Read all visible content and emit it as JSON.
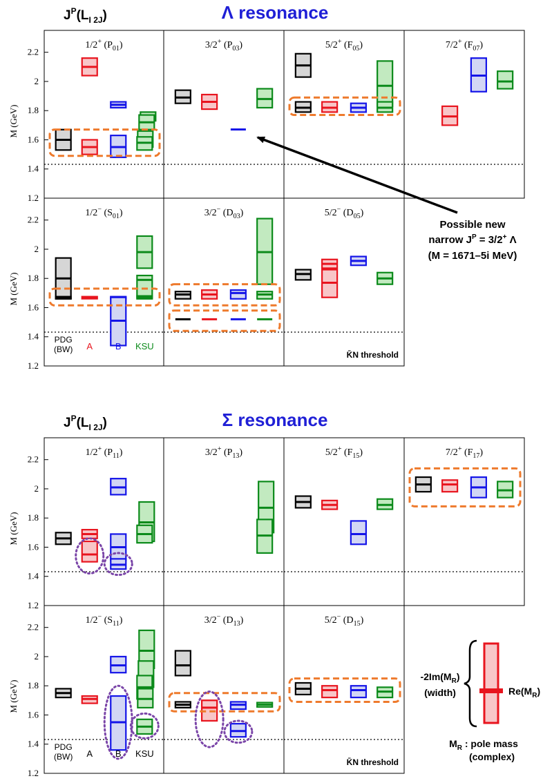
{
  "colors": {
    "pdg": "#000000",
    "a": "#e8141e",
    "b": "#1414e8",
    "ksu": "#0b8a1a",
    "pdg_fill": "#d6d6d6",
    "a_fill": "#f8c6c8",
    "b_fill": "#d2d6f4",
    "ksu_fill": "#c2eac0",
    "title": "#1f1fd6",
    "orange": "#ee7a2c",
    "purple": "#7a45a8"
  },
  "y_axis": {
    "label": "M (GeV)",
    "ticks": [
      "1.2",
      "1.4",
      "1.6",
      "1.8",
      "2",
      "2.2"
    ],
    "ylim": [
      1.2,
      2.35
    ]
  },
  "threshold": {
    "value": 1.432,
    "label": "K̄N threshold"
  },
  "methods": {
    "pdg_line1": "PDG",
    "pdg_line2": "(BW)",
    "a": "A",
    "b": "B",
    "ksu": "KSU"
  },
  "chart_data": [
    {
      "type": "box",
      "heading": "J",
      "heading_sup": "P",
      "heading_rest": "(L",
      "heading_sub": "I 2J",
      "heading_end": ")",
      "title": "Λ resonance",
      "panels": [
        {
          "label": "1/2",
          "sign": "+",
          "wave": "P",
          "wave_sub": "01",
          "boxes": [
            {
              "m": "pdg",
              "re": 1.6,
              "lo": 1.53,
              "hi": 1.67,
              "off": 0
            },
            {
              "m": "a",
              "re": 2.1,
              "lo": 2.04,
              "hi": 2.16,
              "off": 0
            },
            {
              "m": "a",
              "re": 1.55,
              "lo": 1.5,
              "hi": 1.6,
              "off": 0
            },
            {
              "m": "b",
              "re": 1.84,
              "lo": 1.82,
              "hi": 1.86,
              "off": 0
            },
            {
              "m": "b",
              "re": 1.55,
              "lo": 1.48,
              "hi": 1.63,
              "off": 0
            },
            {
              "m": "ksu",
              "re": 1.76,
              "lo": 1.73,
              "hi": 1.79,
              "off": 5
            },
            {
              "m": "ksu",
              "re": 1.72,
              "lo": 1.67,
              "hi": 1.77,
              "off": 3
            },
            {
              "m": "ksu",
              "re": 1.6,
              "lo": 1.55,
              "hi": 1.66,
              "off": 1
            },
            {
              "m": "ksu",
              "re": 1.58,
              "lo": 1.53,
              "hi": 1.62,
              "off": 0
            }
          ]
        },
        {
          "label": "3/2",
          "sign": "+",
          "wave": "P",
          "wave_sub": "03",
          "boxes": [
            {
              "m": "pdg",
              "re": 1.89,
              "lo": 1.85,
              "hi": 1.94,
              "off": 0
            },
            {
              "m": "a",
              "re": 1.86,
              "lo": 1.81,
              "hi": 1.91,
              "off": 0
            },
            {
              "m": "b",
              "re": 1.671,
              "lo": 1.671,
              "hi": 1.671,
              "off": 0
            },
            {
              "m": "ksu",
              "re": 1.88,
              "lo": 1.82,
              "hi": 1.95,
              "off": 0
            }
          ]
        },
        {
          "label": "5/2",
          "sign": "+",
          "wave": "F",
          "wave_sub": "05",
          "boxes": [
            {
              "m": "pdg",
              "re": 2.11,
              "lo": 2.03,
              "hi": 2.19,
              "off": 0
            },
            {
              "m": "pdg",
              "re": 1.82,
              "lo": 1.79,
              "hi": 1.86,
              "off": 0
            },
            {
              "m": "a",
              "re": 1.82,
              "lo": 1.79,
              "hi": 1.86,
              "off": 0
            },
            {
              "m": "b",
              "re": 1.82,
              "lo": 1.79,
              "hi": 1.85,
              "off": 0
            },
            {
              "m": "ksu",
              "re": 1.97,
              "lo": 1.83,
              "hi": 2.14,
              "off": 0
            },
            {
              "m": "ksu",
              "re": 1.82,
              "lo": 1.79,
              "hi": 1.86,
              "off": 0
            }
          ]
        },
        {
          "label": "7/2",
          "sign": "+",
          "wave": "F",
          "wave_sub": "07",
          "boxes": [
            {
              "m": "a",
              "re": 1.76,
              "lo": 1.7,
              "hi": 1.83,
              "off": 0
            },
            {
              "m": "b",
              "re": 2.04,
              "lo": 1.93,
              "hi": 2.16,
              "off": 0
            },
            {
              "m": "ksu",
              "re": 2.0,
              "lo": 1.95,
              "hi": 2.07,
              "off": 0
            }
          ]
        },
        {
          "label": "1/2",
          "sign": "−",
          "wave": "S",
          "wave_sub": "01",
          "boxes": [
            {
              "m": "pdg",
              "re": 1.8,
              "lo": 1.66,
              "hi": 1.94,
              "off": 0
            },
            {
              "m": "pdg",
              "re": 1.67,
              "lo": 1.665,
              "hi": 1.675,
              "off": 0
            },
            {
              "m": "a",
              "re": 1.67,
              "lo": 1.665,
              "hi": 1.675,
              "off": 0
            },
            {
              "m": "b",
              "re": 1.67,
              "lo": 1.665,
              "hi": 1.675,
              "off": 0
            },
            {
              "m": "b",
              "re": 1.51,
              "lo": 1.34,
              "hi": 1.67,
              "off": 0
            },
            {
              "m": "ksu",
              "re": 1.98,
              "lo": 1.87,
              "hi": 2.09,
              "off": 0
            },
            {
              "m": "ksu",
              "re": 1.79,
              "lo": 1.67,
              "hi": 1.82,
              "off": 0
            },
            {
              "m": "ksu",
              "re": 1.67,
              "lo": 1.66,
              "hi": 1.68,
              "off": 0
            }
          ]
        },
        {
          "label": "3/2",
          "sign": "−",
          "wave": "D",
          "wave_sub": "03",
          "boxes": [
            {
              "m": "pdg",
              "re": 1.69,
              "lo": 1.66,
              "hi": 1.71,
              "off": 0
            },
            {
              "m": "pdg",
              "re": 1.52,
              "lo": 1.52,
              "hi": 1.52,
              "off": 0
            },
            {
              "m": "a",
              "re": 1.69,
              "lo": 1.66,
              "hi": 1.72,
              "off": 0
            },
            {
              "m": "a",
              "re": 1.52,
              "lo": 1.52,
              "hi": 1.52,
              "off": 0
            },
            {
              "m": "b",
              "re": 1.7,
              "lo": 1.66,
              "hi": 1.72,
              "off": 0
            },
            {
              "m": "b",
              "re": 1.52,
              "lo": 1.52,
              "hi": 1.52,
              "off": 0
            },
            {
              "m": "ksu",
              "re": 1.98,
              "lo": 1.76,
              "hi": 2.21,
              "off": 0
            },
            {
              "m": "ksu",
              "re": 1.69,
              "lo": 1.66,
              "hi": 1.71,
              "off": 0
            },
            {
              "m": "ksu",
              "re": 1.52,
              "lo": 1.52,
              "hi": 1.52,
              "off": 0
            }
          ]
        },
        {
          "label": "5/2",
          "sign": "−",
          "wave": "D",
          "wave_sub": "05",
          "boxes": [
            {
              "m": "pdg",
              "re": 1.83,
              "lo": 1.79,
              "hi": 1.86,
              "off": 0
            },
            {
              "m": "a",
              "re": 1.9,
              "lo": 1.87,
              "hi": 1.93,
              "off": 0
            },
            {
              "m": "a",
              "re": 1.77,
              "lo": 1.67,
              "hi": 1.86,
              "off": 0
            },
            {
              "m": "b",
              "re": 1.92,
              "lo": 1.89,
              "hi": 1.95,
              "off": 0
            },
            {
              "m": "ksu",
              "re": 1.8,
              "lo": 1.76,
              "hi": 1.84,
              "off": 0
            }
          ]
        }
      ],
      "highlights": [
        {
          "panel": 0,
          "lo": 1.49,
          "hi": 1.67
        },
        {
          "panel": 2,
          "lo": 1.77,
          "hi": 1.89
        },
        {
          "panel": 4,
          "lo": 1.615,
          "hi": 1.73
        },
        {
          "panel": 5,
          "lo": 1.615,
          "hi": 1.76
        },
        {
          "panel": 5,
          "lo": 1.44,
          "hi": 1.58
        }
      ]
    },
    {
      "type": "box",
      "heading": "J",
      "heading_sup": "P",
      "heading_rest": "(L",
      "heading_sub": "I 2J",
      "heading_end": ")",
      "title": "Σ resonance",
      "panels": [
        {
          "label": "1/2",
          "sign": "+",
          "wave": "P",
          "wave_sub": "11",
          "boxes": [
            {
              "m": "pdg",
              "re": 1.66,
              "lo": 1.62,
              "hi": 1.7,
              "off": 0
            },
            {
              "m": "a",
              "re": 1.69,
              "lo": 1.66,
              "hi": 1.72,
              "off": 0
            },
            {
              "m": "a",
              "re": 1.55,
              "lo": 1.5,
              "hi": 1.64,
              "off": 0
            },
            {
              "m": "b",
              "re": 2.01,
              "lo": 1.96,
              "hi": 2.07,
              "off": 0
            },
            {
              "m": "b",
              "re": 1.6,
              "lo": 1.51,
              "hi": 1.69,
              "off": 0
            },
            {
              "m": "b",
              "re": 1.48,
              "lo": 1.45,
              "hi": 1.52,
              "off": 0
            },
            {
              "m": "ksu",
              "re": 1.77,
              "lo": 1.64,
              "hi": 1.91,
              "off": 3
            },
            {
              "m": "ksu",
              "re": 1.69,
              "lo": 1.63,
              "hi": 1.75,
              "off": 0
            }
          ]
        },
        {
          "label": "3/2",
          "sign": "+",
          "wave": "P",
          "wave_sub": "13",
          "boxes": [
            {
              "m": "ksu",
              "re": 1.87,
              "lo": 1.7,
              "hi": 2.05,
              "off": 2
            },
            {
              "m": "ksu",
              "re": 1.68,
              "lo": 1.56,
              "hi": 1.79,
              "off": 0
            }
          ]
        },
        {
          "label": "5/2",
          "sign": "+",
          "wave": "F",
          "wave_sub": "15",
          "boxes": [
            {
              "m": "pdg",
              "re": 1.91,
              "lo": 1.87,
              "hi": 1.95,
              "off": 0
            },
            {
              "m": "a",
              "re": 1.89,
              "lo": 1.86,
              "hi": 1.92,
              "off": 0
            },
            {
              "m": "b",
              "re": 1.69,
              "lo": 1.62,
              "hi": 1.78,
              "off": 0
            },
            {
              "m": "ksu",
              "re": 1.89,
              "lo": 1.86,
              "hi": 1.93,
              "off": 0
            }
          ]
        },
        {
          "label": "7/2",
          "sign": "+",
          "wave": "F",
          "wave_sub": "17",
          "boxes": [
            {
              "m": "pdg",
              "re": 2.03,
              "lo": 1.98,
              "hi": 2.08,
              "off": 0
            },
            {
              "m": "a",
              "re": 2.03,
              "lo": 1.98,
              "hi": 2.06,
              "off": 0
            },
            {
              "m": "b",
              "re": 2.01,
              "lo": 1.94,
              "hi": 2.08,
              "off": 0
            },
            {
              "m": "ksu",
              "re": 1.99,
              "lo": 1.94,
              "hi": 2.05,
              "off": 0
            }
          ]
        },
        {
          "label": "1/2",
          "sign": "−",
          "wave": "S",
          "wave_sub": "11",
          "boxes": [
            {
              "m": "pdg",
              "re": 1.75,
              "lo": 1.72,
              "hi": 1.78,
              "off": 0
            },
            {
              "m": "a",
              "re": 1.71,
              "lo": 1.68,
              "hi": 1.73,
              "off": 0
            },
            {
              "m": "b",
              "re": 1.94,
              "lo": 1.89,
              "hi": 2.0,
              "off": 0
            },
            {
              "m": "b",
              "re": 1.55,
              "lo": 1.36,
              "hi": 1.73,
              "off": 0
            },
            {
              "m": "ksu",
              "re": 2.04,
              "lo": 1.92,
              "hi": 2.18,
              "off": 3
            },
            {
              "m": "ksu",
              "re": 1.86,
              "lo": 1.79,
              "hi": 1.97,
              "off": 2
            },
            {
              "m": "ksu",
              "re": 1.79,
              "lo": 1.71,
              "hi": 1.87,
              "off": 0
            },
            {
              "m": "ksu",
              "re": 1.71,
              "lo": 1.65,
              "hi": 1.78,
              "off": 1
            },
            {
              "m": "ksu",
              "re": 1.52,
              "lo": 1.47,
              "hi": 1.57,
              "off": 0
            }
          ]
        },
        {
          "label": "3/2",
          "sign": "−",
          "wave": "D",
          "wave_sub": "13",
          "boxes": [
            {
              "m": "pdg",
              "re": 1.94,
              "lo": 1.87,
              "hi": 2.04,
              "off": 0
            },
            {
              "m": "pdg",
              "re": 1.67,
              "lo": 1.65,
              "hi": 1.69,
              "off": 0
            },
            {
              "m": "a",
              "re": 1.67,
              "lo": 1.64,
              "hi": 1.7,
              "off": 0
            },
            {
              "m": "a",
              "re": 1.65,
              "lo": 1.56,
              "hi": 1.7,
              "off": 0
            },
            {
              "m": "b",
              "re": 1.67,
              "lo": 1.64,
              "hi": 1.69,
              "off": 0
            },
            {
              "m": "b",
              "re": 1.49,
              "lo": 1.45,
              "hi": 1.54,
              "off": 0
            },
            {
              "m": "ksu",
              "re": 1.67,
              "lo": 1.655,
              "hi": 1.685,
              "off": 0
            }
          ]
        },
        {
          "label": "5/2",
          "sign": "−",
          "wave": "D",
          "wave_sub": "15",
          "boxes": [
            {
              "m": "pdg",
              "re": 1.78,
              "lo": 1.74,
              "hi": 1.82,
              "off": 0
            },
            {
              "m": "a",
              "re": 1.77,
              "lo": 1.72,
              "hi": 1.8,
              "off": 0
            },
            {
              "m": "b",
              "re": 1.77,
              "lo": 1.72,
              "hi": 1.8,
              "off": 0
            },
            {
              "m": "ksu",
              "re": 1.76,
              "lo": 1.72,
              "hi": 1.79,
              "off": 0
            }
          ]
        }
      ],
      "highlights": [
        {
          "panel": 3,
          "lo": 1.88,
          "hi": 2.14
        },
        {
          "panel": 5,
          "lo": 1.625,
          "hi": 1.75
        },
        {
          "panel": 6,
          "lo": 1.69,
          "hi": 1.85
        }
      ],
      "ellipses": [
        {
          "panel": 0,
          "m": "a",
          "lo": 1.42,
          "hi": 1.66
        },
        {
          "panel": 0,
          "m": "b",
          "lo": 1.41,
          "hi": 1.56
        },
        {
          "panel": 4,
          "m": "b",
          "lo": 1.3,
          "hi": 1.8
        },
        {
          "panel": 4,
          "m": "ksu",
          "lo": 1.44,
          "hi": 1.61
        },
        {
          "panel": 5,
          "m": "a",
          "lo": 1.38,
          "hi": 1.76
        },
        {
          "panel": 5,
          "m": "b",
          "lo": 1.41,
          "hi": 1.56
        }
      ]
    }
  ],
  "annotation": {
    "line1": "Possible new",
    "line2_pre": "narrow J",
    "line2_sup_p": "P",
    "line2_mid": " = 3/2",
    "line2_sup_plus": "+",
    "line2_post": " Λ",
    "line3": "(M = 1671–5i MeV)"
  },
  "legend": {
    "width_line1_pre": "-2Im(M",
    "width_line1_sub": "R",
    "width_line1_post": ")",
    "width_line2": "(width)",
    "re_pre": "Re(M",
    "re_sub": "R",
    "re_post": ")",
    "pole_pre": "M",
    "pole_sub": "R",
    "pole_post": " : pole mass",
    "pole_line2": "(complex)"
  }
}
